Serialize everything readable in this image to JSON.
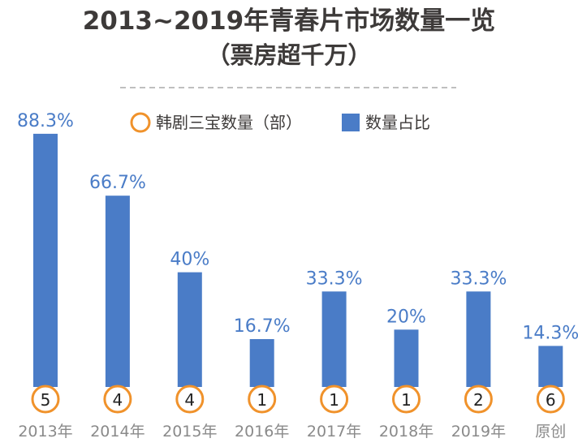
{
  "title_line1": "2013~2019年青春片市场数量一览",
  "title_line2": "（票房超千万）",
  "legend": {
    "count_label": "韩剧三宝数量（部）",
    "ratio_label": "数量占比"
  },
  "colors": {
    "bar": "#4a7cc7",
    "circle": "#f0922b",
    "title": "#3d3a39",
    "category": "#8a8a8a"
  },
  "chart_data": {
    "type": "bar",
    "title": "2013~2019年青春片市场数量一览（票房超千万）",
    "categories": [
      "2013年",
      "2014年",
      "2015年",
      "2016年",
      "2017年",
      "2018年",
      "2019年",
      "原创"
    ],
    "series": [
      {
        "name": "数量占比",
        "values": [
          88.3,
          66.7,
          40,
          16.7,
          33.3,
          20,
          33.3,
          14.3
        ],
        "labels": [
          "88.3%",
          "66.7%",
          "40%",
          "16.7%",
          "33.3%",
          "20%",
          "33.3%",
          "14.3%"
        ]
      },
      {
        "name": "韩剧三宝数量（部）",
        "values": [
          5,
          4,
          4,
          1,
          1,
          1,
          2,
          6
        ]
      }
    ],
    "xlabel": "",
    "ylabel": "",
    "ylim": [
      0,
      100
    ],
    "grid": false,
    "legend_position": "top"
  }
}
